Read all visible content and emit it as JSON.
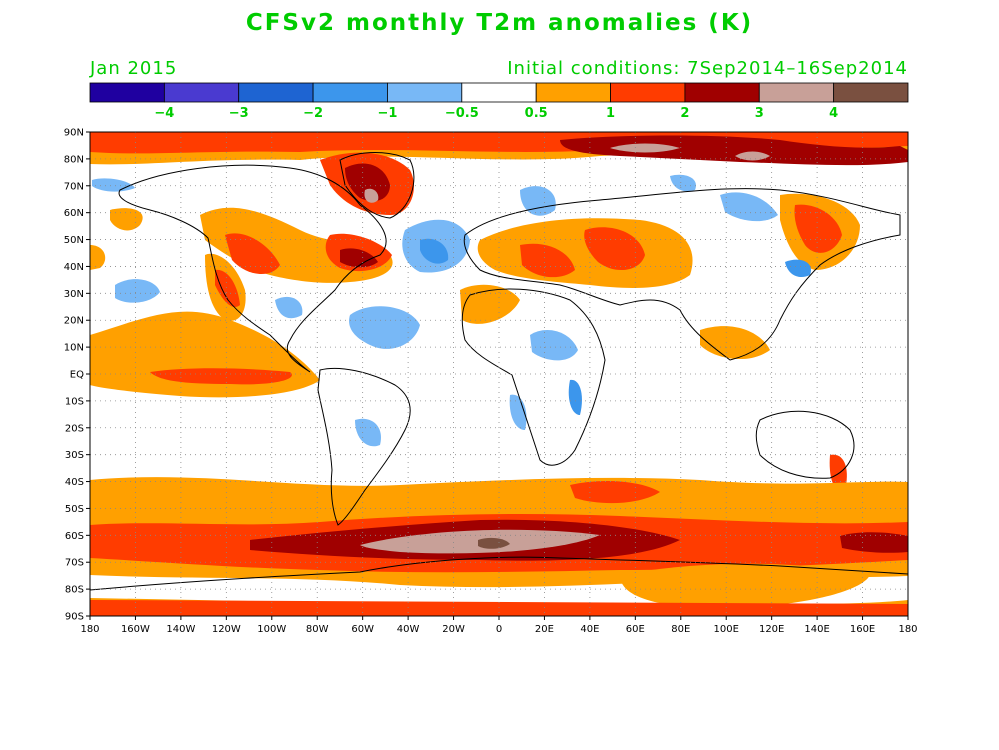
{
  "title": "CFSv2 monthly T2m anomalies (K)",
  "subtitle_left": "Jan 2015",
  "subtitle_right": "Initial conditions: 7Sep2014–16Sep2014",
  "colorbar": {
    "colors": [
      "#1f00a0",
      "#4a3ad0",
      "#1e64d2",
      "#3c96ec",
      "#78b8f6",
      "#ffffff",
      "#ffa000",
      "#ff3c00",
      "#a00000",
      "#c8a098",
      "#7a5040"
    ],
    "labels": [
      "−4",
      "−3",
      "−2",
      "−1",
      "−0.5",
      "0.5",
      "1",
      "2",
      "3",
      "4"
    ]
  },
  "axes": {
    "lon_labels": [
      "180",
      "160W",
      "140W",
      "120W",
      "100W",
      "80W",
      "60W",
      "40W",
      "20W",
      "0",
      "20E",
      "40E",
      "60E",
      "80E",
      "100E",
      "120E",
      "140E",
      "160E",
      "180"
    ],
    "lat_labels": [
      "90N",
      "80N",
      "70N",
      "60N",
      "50N",
      "40N",
      "30N",
      "20N",
      "10N",
      "EQ",
      "10S",
      "20S",
      "30S",
      "40S",
      "50S",
      "60S",
      "70S",
      "80S",
      "90S"
    ]
  }
}
